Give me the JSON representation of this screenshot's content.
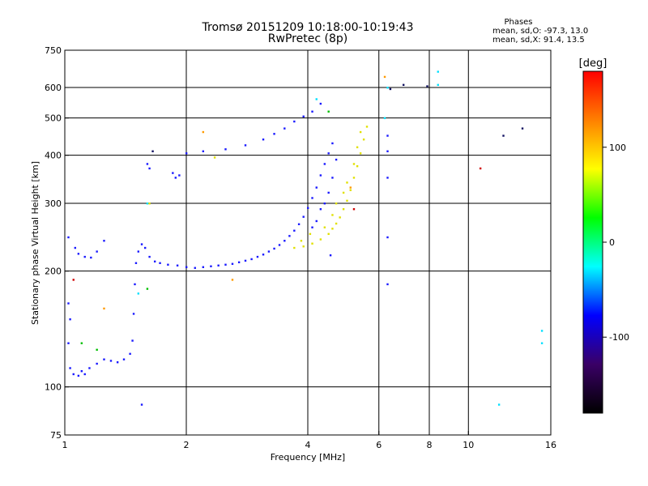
{
  "header": {
    "title_line1": "Tromsø 20151209 10:18:00-10:19:43",
    "title_line2": "RwPretec (8p)"
  },
  "stats": {
    "heading": "Phases",
    "line_o": "mean, sd,O: -97.3, 13.0",
    "line_x": "mean, sd,X: 91.4, 13.5"
  },
  "chart_data": {
    "type": "scatter",
    "xlabel": "Frequency [MHz]",
    "ylabel": "Stationary phase Virtual Height [km]",
    "xscale": "log",
    "yscale": "log",
    "xlim": [
      1,
      16
    ],
    "ylim": [
      75,
      750
    ],
    "xticks": [
      1,
      2,
      4,
      6,
      8,
      10,
      16
    ],
    "xtick_labels": [
      "1",
      "2",
      "4",
      "6",
      "8",
      "10",
      "16"
    ],
    "yticks": [
      75,
      100,
      200,
      300,
      400,
      500,
      600,
      750
    ],
    "ytick_labels": [
      "75",
      "100",
      "200",
      "300",
      "400",
      "500",
      "600",
      "750"
    ],
    "grid_x": [
      1,
      2,
      4,
      6,
      8,
      10
    ],
    "grid_y": [
      100,
      200,
      300,
      400,
      500,
      600
    ],
    "grid": true,
    "colorbar": {
      "label": "[deg]",
      "range": [
        -180,
        180
      ],
      "ticks": [
        100,
        0,
        -100
      ],
      "tick_labels": [
        "100",
        "0",
        "-100"
      ],
      "colors": [
        "#000000",
        "#3a0066",
        "#0000ff",
        "#00ffff",
        "#00ff00",
        "#ffff00",
        "#ff8000",
        "#ff0000"
      ]
    },
    "series": [
      {
        "color": "#1a1aff",
        "points": [
          [
            1.02,
            165
          ],
          [
            1.03,
            150
          ],
          [
            1.02,
            130
          ],
          [
            1.03,
            112
          ],
          [
            1.05,
            108
          ],
          [
            1.08,
            107
          ],
          [
            1.1,
            110
          ],
          [
            1.12,
            108
          ],
          [
            1.15,
            112
          ],
          [
            1.2,
            115
          ],
          [
            1.25,
            118
          ],
          [
            1.3,
            117
          ],
          [
            1.35,
            116
          ],
          [
            1.4,
            118
          ],
          [
            1.45,
            122
          ],
          [
            1.47,
            132
          ],
          [
            1.48,
            155
          ],
          [
            1.49,
            185
          ],
          [
            1.5,
            210
          ],
          [
            1.52,
            225
          ],
          [
            1.55,
            235
          ],
          [
            1.58,
            230
          ],
          [
            1.62,
            218
          ],
          [
            1.67,
            212
          ],
          [
            1.72,
            210
          ],
          [
            1.8,
            208
          ],
          [
            1.9,
            207
          ],
          [
            2.0,
            205
          ],
          [
            2.1,
            204
          ],
          [
            2.2,
            205
          ],
          [
            2.3,
            206
          ],
          [
            2.4,
            207
          ],
          [
            2.5,
            208
          ],
          [
            2.6,
            209
          ],
          [
            2.7,
            211
          ],
          [
            2.8,
            213
          ],
          [
            2.9,
            215
          ],
          [
            3.0,
            218
          ],
          [
            3.1,
            221
          ],
          [
            3.2,
            225
          ],
          [
            3.3,
            229
          ],
          [
            3.4,
            234
          ],
          [
            3.5,
            240
          ],
          [
            3.6,
            247
          ],
          [
            3.7,
            255
          ],
          [
            3.8,
            265
          ],
          [
            3.9,
            277
          ],
          [
            4.0,
            292
          ],
          [
            4.1,
            310
          ],
          [
            4.2,
            330
          ],
          [
            4.3,
            355
          ],
          [
            4.4,
            380
          ],
          [
            4.5,
            405
          ],
          [
            4.6,
            430
          ],
          [
            4.3,
            290
          ],
          [
            4.4,
            300
          ],
          [
            4.5,
            320
          ],
          [
            4.6,
            350
          ],
          [
            4.7,
            390
          ],
          [
            4.2,
            270
          ],
          [
            4.1,
            260
          ],
          [
            1.06,
            230
          ],
          [
            1.08,
            222
          ],
          [
            1.12,
            218
          ],
          [
            1.16,
            217
          ],
          [
            1.2,
            225
          ],
          [
            1.25,
            240
          ],
          [
            1.02,
            245
          ],
          [
            1.6,
            380
          ],
          [
            1.62,
            370
          ],
          [
            1.85,
            360
          ],
          [
            1.88,
            350
          ],
          [
            1.92,
            355
          ],
          [
            2.0,
            405
          ],
          [
            2.2,
            410
          ],
          [
            2.5,
            415
          ],
          [
            2.8,
            425
          ],
          [
            3.1,
            440
          ],
          [
            3.3,
            455
          ],
          [
            3.5,
            470
          ],
          [
            3.7,
            490
          ],
          [
            3.9,
            505
          ],
          [
            4.1,
            520
          ],
          [
            4.3,
            545
          ],
          [
            6.3,
            185
          ],
          [
            6.3,
            245
          ],
          [
            6.3,
            350
          ],
          [
            6.3,
            410
          ],
          [
            6.3,
            450
          ],
          [
            1.55,
            90
          ],
          [
            4.55,
            220
          ]
        ]
      },
      {
        "color": "#e0e000",
        "points": [
          [
            3.7,
            230
          ],
          [
            3.9,
            232
          ],
          [
            4.1,
            236
          ],
          [
            4.3,
            242
          ],
          [
            4.5,
            250
          ],
          [
            4.6,
            258
          ],
          [
            4.7,
            266
          ],
          [
            4.8,
            276
          ],
          [
            4.9,
            290
          ],
          [
            5.0,
            305
          ],
          [
            5.1,
            325
          ],
          [
            5.2,
            350
          ],
          [
            5.3,
            375
          ],
          [
            5.4,
            405
          ],
          [
            5.5,
            440
          ],
          [
            5.6,
            475
          ],
          [
            4.7,
            300
          ],
          [
            4.9,
            320
          ],
          [
            5.0,
            340
          ],
          [
            5.2,
            380
          ],
          [
            5.3,
            420
          ],
          [
            5.4,
            460
          ],
          [
            4.4,
            260
          ],
          [
            4.6,
            280
          ],
          [
            3.85,
            240
          ],
          [
            4.05,
            250
          ],
          [
            2.35,
            395
          ],
          [
            1.62,
            300
          ]
        ]
      },
      {
        "color": "#00e0ff",
        "points": [
          [
            4.2,
            560
          ],
          [
            6.2,
            500
          ],
          [
            6.3,
            600
          ],
          [
            8.4,
            660
          ],
          [
            8.4,
            610
          ],
          [
            11.9,
            90
          ],
          [
            15.2,
            140
          ],
          [
            15.2,
            130
          ],
          [
            1.52,
            175
          ],
          [
            1.6,
            300
          ]
        ]
      },
      {
        "color": "#00c000",
        "points": [
          [
            4.5,
            520
          ],
          [
            1.2,
            125
          ],
          [
            1.1,
            130
          ],
          [
            1.6,
            180
          ]
        ]
      },
      {
        "color": "#ff9a00",
        "points": [
          [
            6.2,
            640
          ],
          [
            1.25,
            160
          ],
          [
            2.6,
            190
          ],
          [
            2.2,
            460
          ],
          [
            5.1,
            330
          ]
        ]
      },
      {
        "color": "#d00000",
        "points": [
          [
            10.7,
            370
          ],
          [
            5.2,
            290
          ],
          [
            1.05,
            190
          ]
        ]
      },
      {
        "color": "#101060",
        "points": [
          [
            6.9,
            610
          ],
          [
            7.9,
            605
          ],
          [
            12.2,
            450
          ],
          [
            13.6,
            470
          ],
          [
            6.4,
            595
          ],
          [
            1.65,
            410
          ]
        ]
      }
    ]
  }
}
